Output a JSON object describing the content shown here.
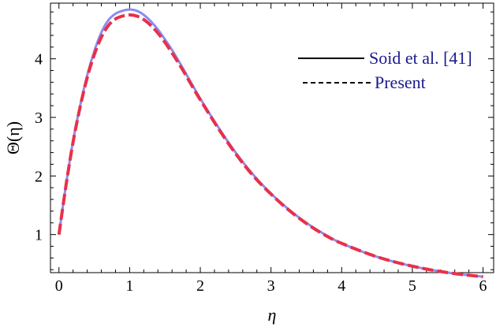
{
  "chart_data": {
    "type": "line",
    "title": "",
    "xlabel": "η",
    "ylabel": "Θ(η)",
    "xlim": [
      -0.12,
      6.15
    ],
    "ylim": [
      0.35,
      4.95
    ],
    "xticks": [
      "0",
      "1",
      "2",
      "3",
      "4",
      "5",
      "6"
    ],
    "yticks": [
      "1",
      "2",
      "3",
      "4"
    ],
    "grid": false,
    "legend_position": "top-right",
    "series": [
      {
        "name": "Soid et al. [41]",
        "style": "solid",
        "color": "#8c8cf0",
        "x": [
          0.0,
          0.1,
          0.2,
          0.3,
          0.4,
          0.5,
          0.6,
          0.7,
          0.8,
          0.9,
          1.0,
          1.1,
          1.2,
          1.3,
          1.4,
          1.5,
          1.6,
          1.7,
          1.8,
          1.9,
          2.0,
          2.25,
          2.5,
          2.75,
          3.0,
          3.25,
          3.5,
          3.75,
          4.0,
          4.5,
          5.0,
          5.5,
          6.0
        ],
        "y": [
          1.0,
          1.85,
          2.6,
          3.2,
          3.72,
          4.13,
          4.45,
          4.66,
          4.77,
          4.82,
          4.84,
          4.82,
          4.75,
          4.64,
          4.5,
          4.33,
          4.15,
          3.95,
          3.74,
          3.53,
          3.32,
          2.84,
          2.4,
          2.02,
          1.7,
          1.43,
          1.2,
          1.01,
          0.85,
          0.62,
          0.46,
          0.35,
          0.28
        ]
      },
      {
        "name": "Present",
        "style": "dashed",
        "color": "#e8304a",
        "x": [
          0.0,
          0.1,
          0.2,
          0.3,
          0.4,
          0.5,
          0.6,
          0.7,
          0.8,
          0.9,
          1.0,
          1.1,
          1.2,
          1.3,
          1.4,
          1.5,
          1.6,
          1.7,
          1.8,
          1.9,
          2.0,
          2.25,
          2.5,
          2.75,
          3.0,
          3.25,
          3.5,
          3.75,
          4.0,
          4.5,
          5.0,
          5.5,
          6.0
        ],
        "y": [
          1.0,
          1.84,
          2.58,
          3.18,
          3.68,
          4.07,
          4.37,
          4.57,
          4.68,
          4.73,
          4.75,
          4.73,
          4.67,
          4.57,
          4.44,
          4.28,
          4.1,
          3.91,
          3.71,
          3.5,
          3.3,
          2.82,
          2.38,
          2.0,
          1.69,
          1.42,
          1.19,
          1.0,
          0.85,
          0.62,
          0.46,
          0.35,
          0.28
        ]
      }
    ]
  }
}
